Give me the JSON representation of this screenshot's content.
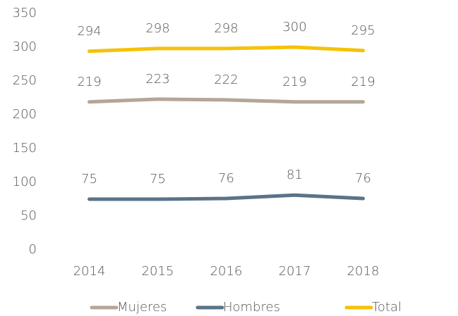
{
  "chart_data": {
    "type": "line",
    "categories": [
      "2014",
      "2015",
      "2016",
      "2017",
      "2018"
    ],
    "series": [
      {
        "name": "Mujeres",
        "color": "#b4a698",
        "values": [
          219,
          223,
          222,
          219,
          219
        ]
      },
      {
        "name": "Hombres",
        "color": "#5b7387",
        "values": [
          75,
          75,
          76,
          81,
          76
        ]
      },
      {
        "name": "Total",
        "color": "#f5c20a",
        "values": [
          294,
          298,
          298,
          300,
          295
        ]
      }
    ],
    "ylim": [
      0,
      350
    ],
    "yticks": [
      0,
      50,
      100,
      150,
      200,
      250,
      300,
      350
    ],
    "legend": "bottom"
  }
}
